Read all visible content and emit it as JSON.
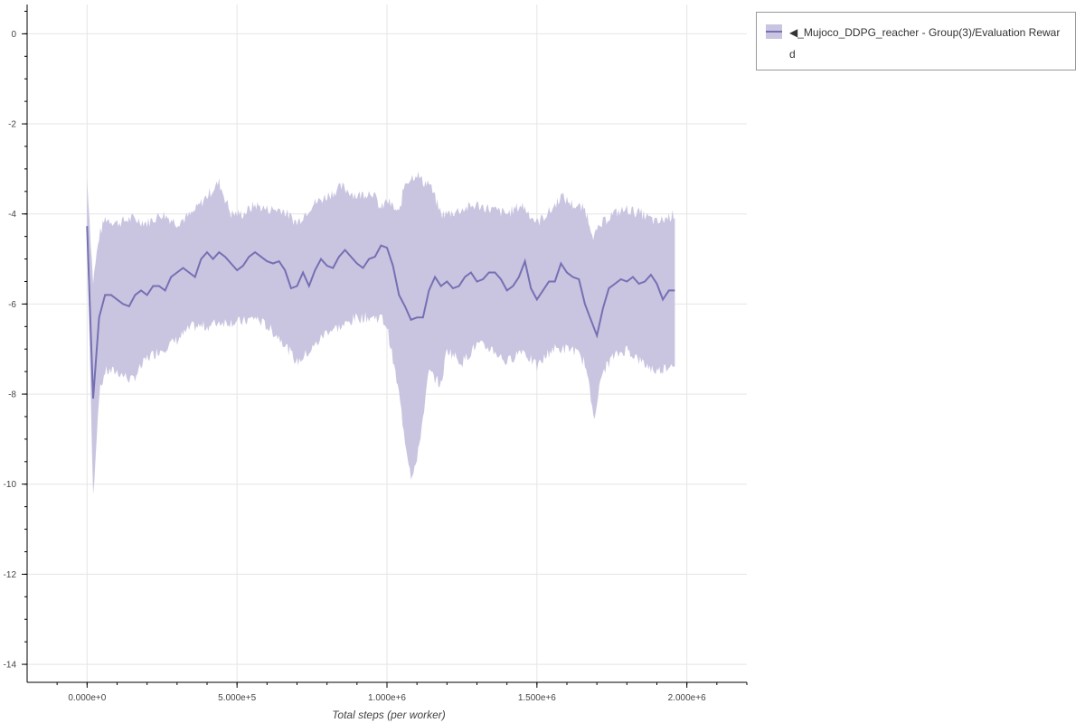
{
  "chart_data": {
    "type": "area",
    "xlabel": "Total steps (per worker)",
    "ylabel": "",
    "xlim": [
      -200000,
      2200000
    ],
    "ylim": [
      -14.4,
      0.65
    ],
    "xticks": [
      0,
      500000,
      1000000,
      1500000,
      2000000
    ],
    "xtick_labels": [
      "0.000e+0",
      "5.000e+5",
      "1.000e+6",
      "1.500e+6",
      "2.000e+6"
    ],
    "yticks": [
      0,
      -2,
      -4,
      -6,
      -8,
      -10,
      -12,
      -14
    ],
    "ytick_labels": [
      "0",
      "-2",
      "-4",
      "-6",
      "-8",
      "-10",
      "-12",
      "-14"
    ],
    "grid": true,
    "legend_position": "outside-top-right",
    "colors": {
      "line": "#7570b3",
      "band": "#c9c5e0"
    },
    "series": [
      {
        "name": "◀_Mujoco_DDPG_reacher - Group(3)/Evaluation Reward",
        "x": [
          0,
          20000,
          40000,
          60000,
          80000,
          100000,
          120000,
          140000,
          160000,
          180000,
          200000,
          220000,
          240000,
          260000,
          280000,
          300000,
          320000,
          340000,
          360000,
          380000,
          400000,
          420000,
          440000,
          460000,
          480000,
          500000,
          520000,
          540000,
          560000,
          580000,
          600000,
          620000,
          640000,
          660000,
          680000,
          700000,
          720000,
          740000,
          760000,
          780000,
          800000,
          820000,
          840000,
          860000,
          880000,
          900000,
          920000,
          940000,
          960000,
          980000,
          1000000,
          1020000,
          1040000,
          1060000,
          1080000,
          1100000,
          1120000,
          1140000,
          1160000,
          1180000,
          1200000,
          1220000,
          1240000,
          1260000,
          1280000,
          1300000,
          1320000,
          1340000,
          1360000,
          1380000,
          1400000,
          1420000,
          1440000,
          1460000,
          1480000,
          1500000,
          1520000,
          1540000,
          1560000,
          1580000,
          1600000,
          1620000,
          1640000,
          1660000,
          1680000,
          1700000,
          1720000,
          1740000,
          1760000,
          1780000,
          1800000,
          1820000,
          1840000,
          1860000,
          1880000,
          1900000,
          1920000,
          1940000,
          1960000
        ],
        "y": [
          -4.27,
          -8.1,
          -6.3,
          -5.8,
          -5.8,
          -5.9,
          -6.0,
          -6.05,
          -5.8,
          -5.7,
          -5.8,
          -5.6,
          -5.6,
          -5.7,
          -5.4,
          -5.3,
          -5.2,
          -5.3,
          -5.4,
          -5.0,
          -4.85,
          -5.0,
          -4.85,
          -4.95,
          -5.1,
          -5.25,
          -5.15,
          -4.95,
          -4.85,
          -4.95,
          -5.05,
          -5.1,
          -5.05,
          -5.25,
          -5.65,
          -5.6,
          -5.3,
          -5.6,
          -5.25,
          -5.0,
          -5.15,
          -5.2,
          -4.95,
          -4.8,
          -4.95,
          -5.1,
          -5.2,
          -5.0,
          -4.95,
          -4.7,
          -4.75,
          -5.15,
          -5.8,
          -6.05,
          -6.35,
          -6.3,
          -6.3,
          -5.7,
          -5.4,
          -5.6,
          -5.5,
          -5.65,
          -5.6,
          -5.4,
          -5.3,
          -5.5,
          -5.45,
          -5.3,
          -5.3,
          -5.45,
          -5.7,
          -5.6,
          -5.4,
          -5.05,
          -5.65,
          -5.9,
          -5.7,
          -5.5,
          -5.5,
          -5.1,
          -5.3,
          -5.4,
          -5.45,
          -6.0,
          -6.35,
          -6.7,
          -6.1,
          -5.65,
          -5.55,
          -5.45,
          -5.5,
          -5.4,
          -5.55,
          -5.5,
          -5.35,
          -5.55,
          -5.9,
          -5.7,
          -5.7
        ],
        "band_x": [
          0,
          20000,
          40000,
          60000,
          100000,
          150000,
          200000,
          250000,
          300000,
          350000,
          400000,
          440000,
          480000,
          520000,
          560000,
          600000,
          650000,
          700000,
          750000,
          800000,
          850000,
          900000,
          950000,
          980000,
          1000000,
          1040000,
          1060000,
          1080000,
          1100000,
          1120000,
          1140000,
          1180000,
          1200000,
          1250000,
          1300000,
          1350000,
          1400000,
          1450000,
          1500000,
          1550000,
          1580000,
          1620000,
          1660000,
          1690000,
          1720000,
          1750000,
          1800000,
          1850000,
          1900000,
          1960000
        ],
        "band_upper": [
          -3.2,
          -5.5,
          -4.5,
          -4.1,
          -4.2,
          -4.1,
          -4.2,
          -4.0,
          -4.2,
          -4.0,
          -3.6,
          -3.3,
          -4.0,
          -4.0,
          -3.8,
          -3.9,
          -3.9,
          -4.2,
          -3.8,
          -3.6,
          -3.4,
          -3.6,
          -3.5,
          -3.9,
          -3.7,
          -4.0,
          -3.3,
          -3.2,
          -3.1,
          -3.3,
          -3.3,
          -4.0,
          -4.0,
          -3.9,
          -3.8,
          -3.9,
          -4.0,
          -3.8,
          -4.2,
          -3.9,
          -3.6,
          -3.8,
          -3.9,
          -4.5,
          -4.2,
          -4.0,
          -3.9,
          -4.0,
          -4.2,
          -4.0
        ],
        "band_lower": [
          -4.5,
          -10.3,
          -8.0,
          -7.5,
          -7.5,
          -7.7,
          -7.2,
          -7.0,
          -6.8,
          -6.5,
          -6.5,
          -6.4,
          -6.4,
          -6.4,
          -6.3,
          -6.5,
          -6.8,
          -7.3,
          -7.0,
          -6.6,
          -6.5,
          -6.3,
          -6.3,
          -6.3,
          -6.5,
          -8.0,
          -9.0,
          -9.8,
          -9.5,
          -8.5,
          -7.5,
          -7.8,
          -7.0,
          -7.3,
          -6.9,
          -7.0,
          -7.3,
          -7.0,
          -7.4,
          -7.0,
          -7.0,
          -7.0,
          -7.3,
          -8.5,
          -7.5,
          -7.2,
          -7.0,
          -7.3,
          -7.5,
          -7.3
        ]
      }
    ]
  }
}
